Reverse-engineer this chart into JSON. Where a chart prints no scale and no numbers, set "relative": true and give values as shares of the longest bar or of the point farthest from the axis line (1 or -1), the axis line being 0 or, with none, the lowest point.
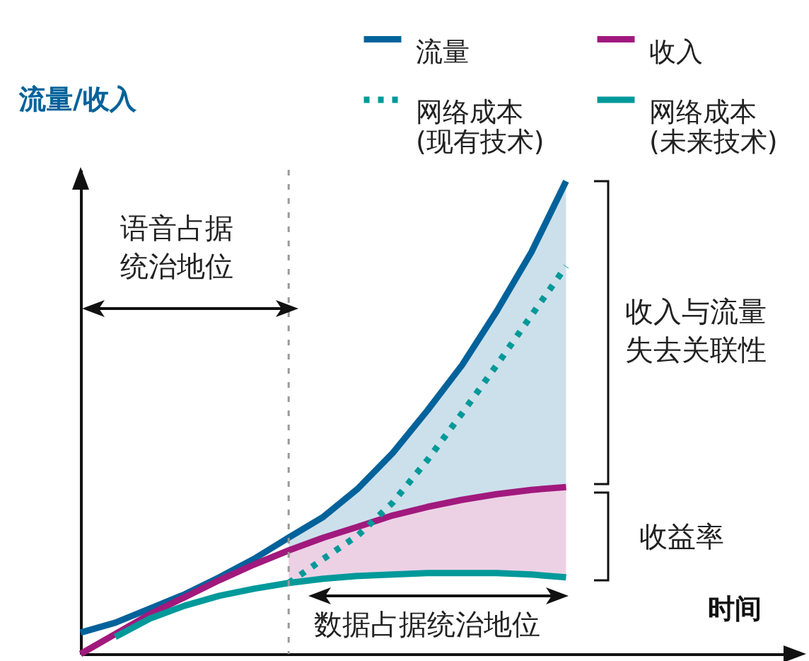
{
  "chart_data": {
    "type": "line",
    "relative": true,
    "ylabel": "流量/收入",
    "xlabel": "时间",
    "categories": [
      null,
      null,
      null,
      null,
      null,
      null,
      null,
      null,
      null,
      null,
      null,
      null,
      null,
      null,
      null
    ],
    "legend": "top right",
    "series": [
      {
        "name": "流量",
        "color": "#00629b",
        "values": [
          0.045,
          0.066,
          0.096,
          0.126,
          0.162,
          0.201,
          0.246,
          0.29,
          0.35,
          0.425,
          0.515,
          0.611,
          0.725,
          0.85,
          1.0
        ],
        "lower": [
          null,
          null,
          null,
          null,
          null,
          null,
          0.219,
          0.246,
          0.269,
          0.293,
          0.311,
          0.326,
          0.338,
          0.347,
          0.353
        ],
        "upper": [
          null,
          null,
          null,
          null,
          null,
          null,
          0.246,
          0.29,
          0.35,
          0.425,
          0.515,
          0.611,
          0.725,
          0.85,
          1.0
        ]
      },
      {
        "name": "收入",
        "color": "#a1197d",
        "values": [
          0,
          0.042,
          0.084,
          0.12,
          0.156,
          0.189,
          0.219,
          0.246,
          0.269,
          0.293,
          0.311,
          0.326,
          0.338,
          0.347,
          0.353
        ],
        "lower": [
          null,
          null,
          null,
          null,
          null,
          null,
          0.15,
          0.159,
          0.165,
          0.168,
          0.171,
          0.171,
          0.171,
          0.168,
          0.162
        ],
        "upper": [
          null,
          null,
          null,
          null,
          null,
          null,
          0.219,
          0.246,
          0.269,
          0.293,
          0.311,
          0.326,
          0.338,
          0.347,
          0.353
        ]
      },
      {
        "name": "网络成本 (现有技术)",
        "color": "#00999a",
        "line_style": "dotted",
        "values": [
          null,
          null,
          null,
          null,
          null,
          null,
          0.15,
          0.201,
          0.251,
          0.32,
          0.41,
          0.509,
          0.611,
          0.716,
          0.82
        ]
      },
      {
        "name": "网络成本 (未来技术)",
        "color": "#00999a",
        "line_style": "solid",
        "values": [
          null,
          0.036,
          0.075,
          0.102,
          0.123,
          0.138,
          0.15,
          0.159,
          0.165,
          0.168,
          0.171,
          0.171,
          0.171,
          0.168,
          0.162
        ]
      }
    ],
    "ref_lines": [
      {
        "axis": "x",
        "color": "#9a9a9a",
        "line_style": "dotted"
      }
    ],
    "annotations": [
      "语音占据统治地位",
      "数据占据统治地位",
      "收入与流量失去关联性",
      "收益率"
    ]
  }
}
